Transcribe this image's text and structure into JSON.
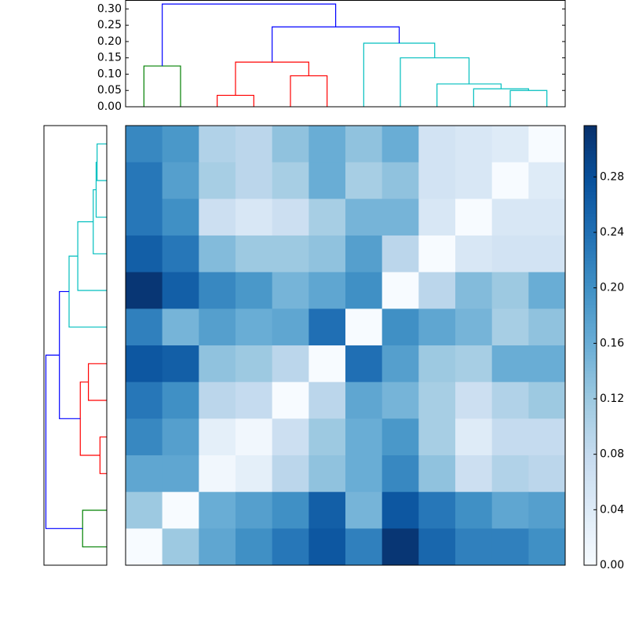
{
  "chart_data": {
    "type": "heatmap",
    "matrix": [
      [
        0.21,
        0.19,
        0.1,
        0.09,
        0.13,
        0.16,
        0.13,
        0.16,
        0.06,
        0.05,
        0.04,
        0.0
      ],
      [
        0.23,
        0.18,
        0.11,
        0.09,
        0.11,
        0.16,
        0.11,
        0.13,
        0.06,
        0.05,
        0.0,
        0.04
      ],
      [
        0.23,
        0.2,
        0.07,
        0.05,
        0.07,
        0.11,
        0.15,
        0.15,
        0.05,
        0.0,
        0.05,
        0.05
      ],
      [
        0.26,
        0.23,
        0.14,
        0.12,
        0.12,
        0.13,
        0.18,
        0.09,
        0.0,
        0.05,
        0.06,
        0.06
      ],
      [
        0.31,
        0.26,
        0.21,
        0.19,
        0.15,
        0.17,
        0.2,
        0.0,
        0.09,
        0.14,
        0.12,
        0.16
      ],
      [
        0.22,
        0.15,
        0.18,
        0.16,
        0.17,
        0.24,
        0.0,
        0.2,
        0.17,
        0.15,
        0.11,
        0.13
      ],
      [
        0.27,
        0.26,
        0.13,
        0.12,
        0.09,
        0.0,
        0.24,
        0.18,
        0.12,
        0.11,
        0.16,
        0.16
      ],
      [
        0.23,
        0.2,
        0.09,
        0.08,
        0.0,
        0.09,
        0.17,
        0.15,
        0.11,
        0.07,
        0.1,
        0.12
      ],
      [
        0.21,
        0.18,
        0.03,
        0.01,
        0.07,
        0.12,
        0.16,
        0.19,
        0.11,
        0.04,
        0.08,
        0.08
      ],
      [
        0.17,
        0.17,
        0.01,
        0.03,
        0.09,
        0.13,
        0.16,
        0.21,
        0.13,
        0.07,
        0.1,
        0.09
      ],
      [
        0.12,
        0.0,
        0.16,
        0.18,
        0.2,
        0.26,
        0.15,
        0.27,
        0.23,
        0.2,
        0.17,
        0.18
      ],
      [
        0.0,
        0.12,
        0.17,
        0.2,
        0.23,
        0.27,
        0.22,
        0.31,
        0.25,
        0.22,
        0.22,
        0.2
      ]
    ],
    "colormap": [
      "#f7fbff",
      "#deebf7",
      "#c6dbef",
      "#9ecae1",
      "#6baed6",
      "#4292c6",
      "#2171b5",
      "#08519c",
      "#08306b"
    ],
    "clim": [
      0,
      0.317
    ],
    "colorbar_ticks": [
      {
        "value": 0,
        "label": "0.00"
      },
      {
        "value": 0.04,
        "label": "0.04"
      },
      {
        "value": 0.08,
        "label": "0.08"
      },
      {
        "value": 0.12,
        "label": "0.12"
      },
      {
        "value": 0.16,
        "label": "0.16"
      },
      {
        "value": 0.2,
        "label": "0.20"
      },
      {
        "value": 0.24,
        "label": "0.24"
      },
      {
        "value": 0.28,
        "label": "0.28"
      }
    ],
    "dendrogram": {
      "xlim": [
        0,
        120
      ],
      "ylim": [
        0,
        0.325
      ],
      "yticks": [
        {
          "value": 0,
          "label": "0.00"
        },
        {
          "value": 0.05,
          "label": "0.05"
        },
        {
          "value": 0.1,
          "label": "0.10"
        },
        {
          "value": 0.15,
          "label": "0.15"
        },
        {
          "value": 0.2,
          "label": "0.20"
        },
        {
          "value": 0.25,
          "label": "0.25"
        },
        {
          "value": 0.3,
          "label": "0.30"
        }
      ],
      "links": [
        {
          "icoord": [
            5,
            5,
            15,
            15
          ],
          "dcoord": [
            0,
            0.125,
            0.125,
            0
          ],
          "color": "#008000"
        },
        {
          "icoord": [
            25,
            25,
            35,
            35
          ],
          "dcoord": [
            0,
            0.035,
            0.035,
            0
          ],
          "color": "#ff0000"
        },
        {
          "icoord": [
            45,
            45,
            55,
            55
          ],
          "dcoord": [
            0,
            0.095,
            0.095,
            0
          ],
          "color": "#ff0000"
        },
        {
          "icoord": [
            30,
            30,
            50,
            50
          ],
          "dcoord": [
            0.035,
            0.137,
            0.137,
            0.095
          ],
          "color": "#ff0000"
        },
        {
          "icoord": [
            105,
            105,
            115,
            115
          ],
          "dcoord": [
            0,
            0.05,
            0.05,
            0
          ],
          "color": "#00bfbf"
        },
        {
          "icoord": [
            95,
            95,
            110,
            110
          ],
          "dcoord": [
            0,
            0.055,
            0.055,
            0.05
          ],
          "color": "#00bfbf"
        },
        {
          "icoord": [
            85,
            85,
            102.5,
            102.5
          ],
          "dcoord": [
            0,
            0.07,
            0.07,
            0.055
          ],
          "color": "#00bfbf"
        },
        {
          "icoord": [
            75,
            75,
            93.75,
            93.75
          ],
          "dcoord": [
            0,
            0.15,
            0.15,
            0.07
          ],
          "color": "#00bfbf"
        },
        {
          "icoord": [
            65,
            65,
            84.375,
            84.375
          ],
          "dcoord": [
            0,
            0.195,
            0.195,
            0.15
          ],
          "color": "#00bfbf"
        },
        {
          "icoord": [
            40,
            40,
            74.6875,
            74.6875
          ],
          "dcoord": [
            0.137,
            0.245,
            0.245,
            0.195
          ],
          "color": "#0000ff"
        },
        {
          "icoord": [
            10,
            10,
            57.34375,
            57.34375
          ],
          "dcoord": [
            0.125,
            0.315,
            0.315,
            0.245
          ],
          "color": "#0000ff"
        }
      ]
    }
  }
}
